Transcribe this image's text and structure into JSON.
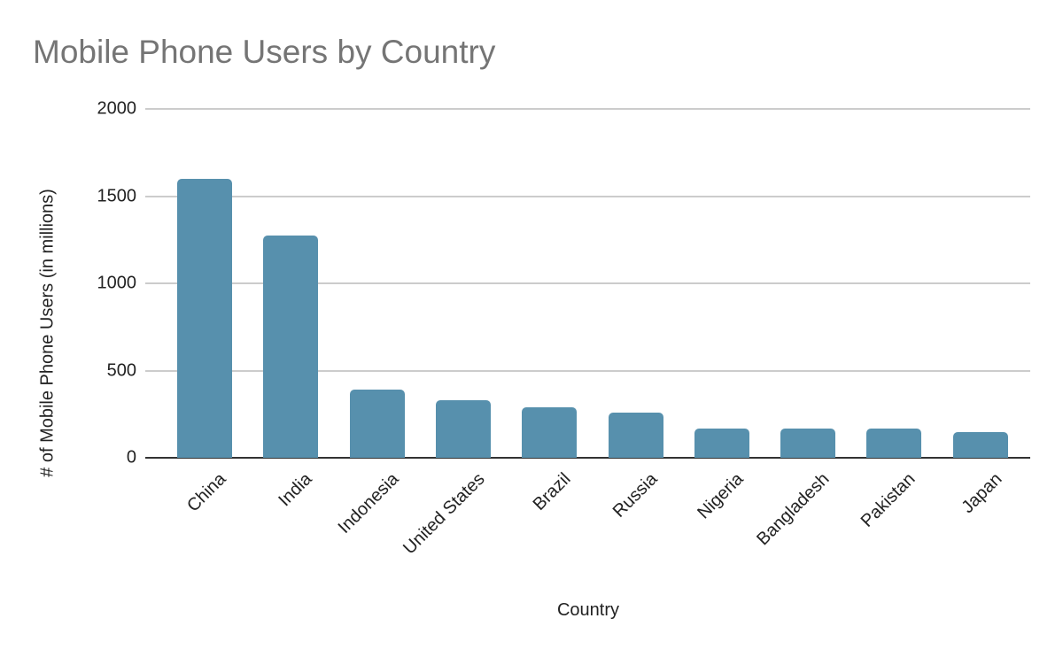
{
  "chart_data": {
    "type": "bar",
    "title": "Mobile Phone Users by Country",
    "xlabel": "Country",
    "ylabel": "# of Mobile Phone Users (in millions)",
    "ylim": [
      0,
      2000
    ],
    "yticks": [
      "0",
      "500",
      "1000",
      "1500",
      "2000"
    ],
    "grid": true,
    "legend": null,
    "color": "#5790ad",
    "categories": [
      "China",
      "India",
      "Indonesia",
      "United States",
      "Brazil",
      "Russia",
      "Nigeria",
      "Bangladesh",
      "Pakistan",
      "Japan"
    ],
    "values": [
      1600,
      1275,
      390,
      330,
      290,
      260,
      168,
      168,
      168,
      147
    ]
  }
}
